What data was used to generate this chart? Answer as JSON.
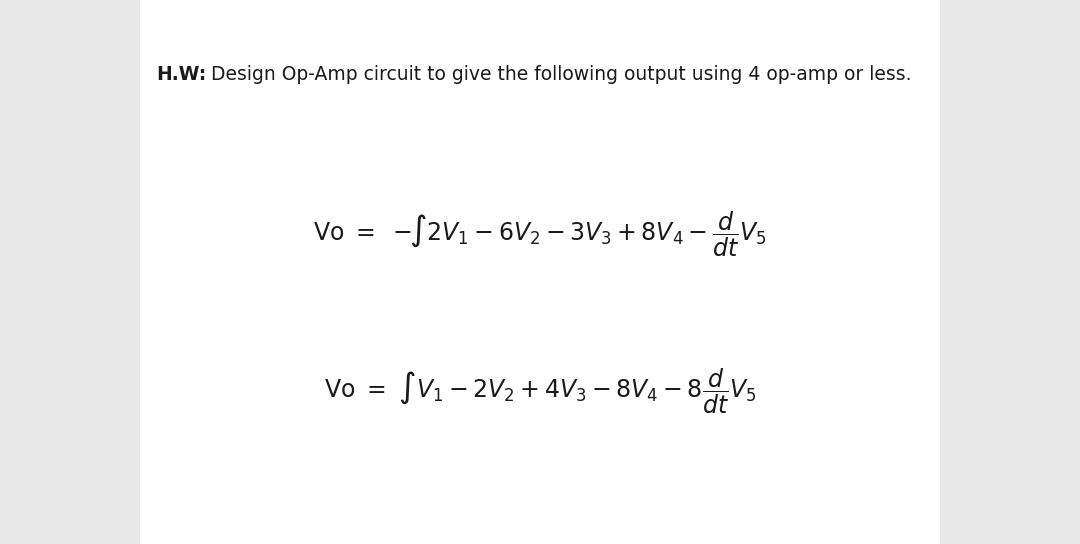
{
  "title_bold": "H.W:",
  "title_normal": " Design Op-Amp circuit to give the following output using 4 op-amp or less.",
  "bg_color": "#e8e8e8",
  "panel_color": "#ffffff",
  "text_color": "#1a1a1a",
  "title_fontsize": 13.5,
  "eq_fontsize": 17
}
